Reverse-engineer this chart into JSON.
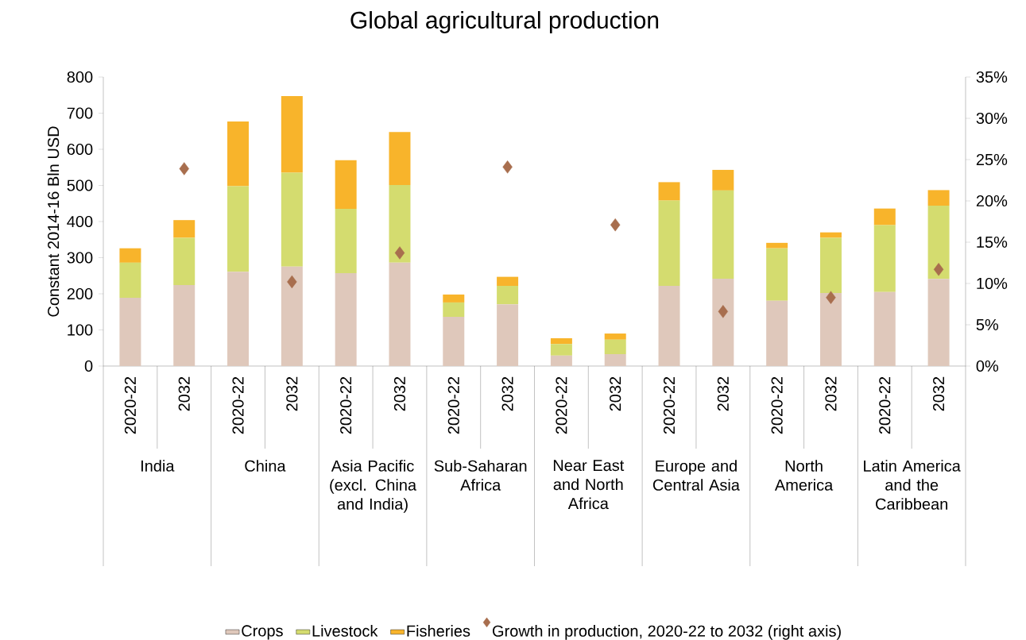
{
  "chart_data": {
    "type": "bar",
    "title": "Global agricultural production",
    "ylabel": "Constant 2014-16 Bln USD",
    "categories": [
      "2020-22",
      "2032",
      "2020-22",
      "2032",
      "2020-22",
      "2032",
      "2020-22",
      "2032",
      "2020-22",
      "2032",
      "2020-22",
      "2032",
      "2020-22",
      "2032",
      "2020-22",
      "2032"
    ],
    "annotations": [
      "India",
      "China",
      "Asia Pacific (excl. China and India)",
      "Sub-Saharan Africa",
      "Near East and North Africa",
      "Europe and Central Asia",
      "North America",
      "Latin America and the Caribbean"
    ],
    "stacked": true,
    "series": [
      {
        "name": "Crops",
        "color": "#dfc8bb",
        "values": [
          189,
          224,
          261,
          275,
          257,
          286,
          136,
          171,
          29,
          33,
          222,
          242,
          181,
          202,
          205,
          241
        ]
      },
      {
        "name": "Livestock",
        "color": "#d4dc6f",
        "values": [
          97,
          131,
          237,
          260,
          178,
          215,
          40,
          51,
          32,
          40,
          236,
          244,
          145,
          153,
          185,
          203
        ]
      },
      {
        "name": "Fisheries",
        "color": "#f8b42b",
        "values": [
          40,
          49,
          179,
          212,
          135,
          147,
          22,
          25,
          16,
          17,
          51,
          57,
          15,
          15,
          46,
          43
        ]
      },
      {
        "name": "Growth in production, 2020-22 to 2032 (right axis)",
        "type": "scatter",
        "axis": "y2",
        "marker": "diamond",
        "color": "#a86e4e",
        "values": [
          null,
          23.9,
          null,
          10.2,
          null,
          13.7,
          null,
          24.1,
          null,
          17.1,
          null,
          6.6,
          null,
          8.3,
          null,
          11.7
        ]
      }
    ],
    "ylim": [
      0,
      800
    ],
    "yticks": [
      0,
      100,
      200,
      300,
      400,
      500,
      600,
      700,
      800
    ],
    "y2lim": [
      0,
      35
    ],
    "y2ticks": [
      {
        "value": 0,
        "label": "0%"
      },
      {
        "value": 5,
        "label": "5%"
      },
      {
        "value": 10,
        "label": "10%"
      },
      {
        "value": 15,
        "label": "15%"
      },
      {
        "value": 20,
        "label": "20%"
      },
      {
        "value": 25,
        "label": "25%"
      },
      {
        "value": 30,
        "label": "30%"
      },
      {
        "value": 35,
        "label": "35%"
      }
    ],
    "legend": "bottom",
    "grid": false
  }
}
